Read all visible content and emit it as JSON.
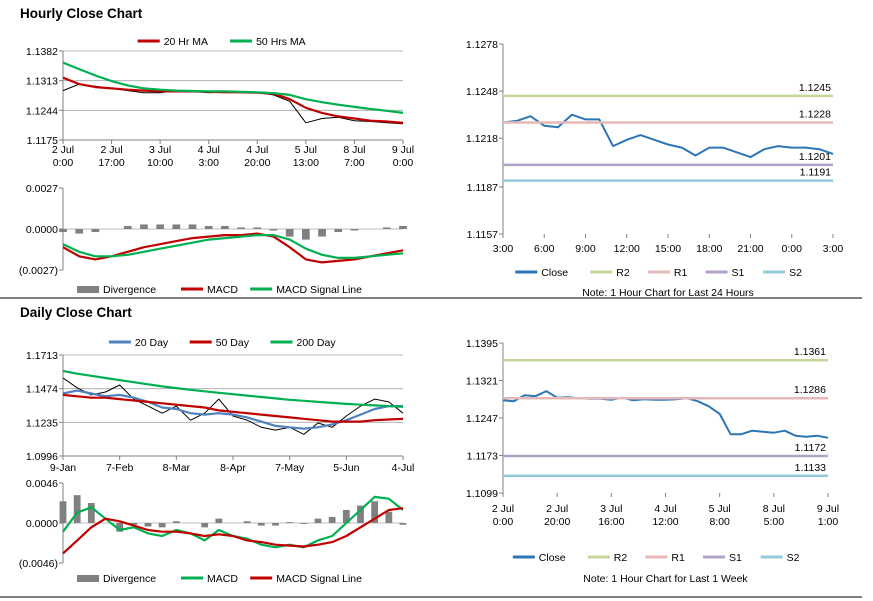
{
  "sections": [
    "Hourly Close Chart",
    "Daily Close Chart"
  ],
  "chart_data": [
    {
      "type": "price",
      "legend": "top",
      "grid": true,
      "ylim": [
        1.1175,
        1.1382
      ],
      "yticks": [
        1.1175,
        1.1244,
        1.1313,
        1.1382
      ],
      "categories": [
        [
          "2 Jul",
          "0:00"
        ],
        null,
        null,
        [
          "2 Jul",
          "17:00"
        ],
        null,
        null,
        [
          "3 Jul",
          "10:00"
        ],
        null,
        null,
        [
          "4 Jul",
          "3:00"
        ],
        null,
        null,
        [
          "4 Jul",
          "20:00"
        ],
        null,
        null,
        [
          "5 Jul",
          "13:00"
        ],
        null,
        null,
        [
          "8 Jul",
          "7:00"
        ],
        null,
        null,
        [
          "9 Jul",
          "0:00"
        ]
      ],
      "bars": {
        "color": "#000000",
        "values": [
          1.129,
          1.1305,
          1.13,
          1.1295,
          1.129,
          1.1285,
          1.1285,
          1.129,
          1.1288,
          1.1285,
          1.1286,
          1.1287,
          1.1285,
          1.128,
          1.1265,
          1.1215,
          1.1225,
          1.1228,
          1.122,
          1.1218,
          1.1215,
          1.1213
        ]
      },
      "series": [
        {
          "name": "20 Hr MA",
          "color": "#c00000",
          "values": [
            1.132,
            1.1305,
            1.1298,
            1.1295,
            1.1292,
            1.129,
            1.1288,
            1.1288,
            1.1288,
            1.1287,
            1.1286,
            1.1286,
            1.1285,
            1.1283,
            1.127,
            1.125,
            1.1238,
            1.123,
            1.1225,
            1.122,
            1.1218,
            1.1215
          ]
        },
        {
          "name": "50 Hrs MA",
          "color": "#00b050",
          "values": [
            1.1355,
            1.134,
            1.1325,
            1.1312,
            1.1302,
            1.1295,
            1.1292,
            1.129,
            1.1289,
            1.1288,
            1.1288,
            1.1287,
            1.1286,
            1.1284,
            1.128,
            1.127,
            1.1263,
            1.1257,
            1.1252,
            1.1247,
            1.1243,
            1.1238
          ]
        }
      ]
    },
    {
      "type": "macd",
      "legend": "bottom",
      "grid": false,
      "ylim": [
        -0.0027,
        0.0027
      ],
      "yticks": [
        {
          "value": -0.0027,
          "label": "(0.0027)"
        },
        {
          "value": 0,
          "label": "0.0000"
        },
        0.0027
      ],
      "series": [
        {
          "name": "Divergence",
          "color": "#808080",
          "style": "bar",
          "values": [
            -0.0002,
            -0.0003,
            -0.0002,
            0,
            0.0002,
            0.0003,
            0.0003,
            0.0003,
            0.0003,
            0.0002,
            0.0002,
            0.0001,
            0.0001,
            -0.0001,
            -0.0005,
            -0.0007,
            -0.0005,
            -0.0002,
            -0.0001,
            0,
            0.0001,
            0.0002
          ]
        },
        {
          "name": "MACD",
          "color": "#c00000",
          "values": [
            -0.0012,
            -0.0018,
            -0.002,
            -0.0018,
            -0.0015,
            -0.0012,
            -0.001,
            -0.0008,
            -0.0006,
            -0.0005,
            -0.0004,
            -0.0004,
            -0.0003,
            -0.0005,
            -0.0012,
            -0.002,
            -0.0022,
            -0.0021,
            -0.002,
            -0.0018,
            -0.0016,
            -0.0014
          ]
        },
        {
          "name": "MACD Signal Line",
          "color": "#00b050",
          "values": [
            -0.001,
            -0.0015,
            -0.0018,
            -0.0018,
            -0.0017,
            -0.0015,
            -0.0013,
            -0.0011,
            -0.0009,
            -0.0007,
            -0.0006,
            -0.0005,
            -0.0004,
            -0.0004,
            -0.0007,
            -0.0013,
            -0.0017,
            -0.0019,
            -0.0019,
            -0.0018,
            -0.0017,
            -0.0016
          ]
        }
      ]
    },
    {
      "type": "pivot",
      "legend": "bottom",
      "grid": false,
      "note": "Note: 1 Hour Chart for Last 24 Hours",
      "ylim": [
        1.1157,
        1.1278
      ],
      "yticks": [
        1.1157,
        1.1187,
        1.1218,
        1.1248,
        1.1278
      ],
      "categories": [
        "3:00",
        null,
        null,
        "6:00",
        null,
        null,
        "9:00",
        null,
        null,
        "12:00",
        null,
        null,
        "15:00",
        null,
        null,
        "18:00",
        null,
        null,
        "21:00",
        null,
        null,
        "0:00",
        null,
        null,
        "3:00"
      ],
      "series": [
        {
          "name": "Close",
          "color": "#2e75b6",
          "values": [
            1.1228,
            1.1229,
            1.1232,
            1.1226,
            1.1225,
            1.1233,
            1.123,
            1.123,
            1.1213,
            1.1217,
            1.122,
            1.1217,
            1.1214,
            1.1212,
            1.1207,
            1.1212,
            1.1212,
            1.1209,
            1.1206,
            1.1211,
            1.1213,
            1.1212,
            1.1212,
            1.1211,
            1.1208
          ]
        },
        {
          "name": "R2",
          "color": "#c4d79b",
          "value": 1.1245
        },
        {
          "name": "R1",
          "color": "#e6b9b8",
          "value": 1.1228
        },
        {
          "name": "S1",
          "color": "#b3a2c7",
          "value": 1.1201
        },
        {
          "name": "S2",
          "color": "#93cddd",
          "value": 1.1191
        }
      ]
    },
    {
      "type": "price",
      "legend": "top",
      "grid": true,
      "ylim": [
        1.0996,
        1.1713
      ],
      "yticks": [
        1.0996,
        1.1235,
        1.1474,
        1.1713
      ],
      "categories": [
        "9-Jan",
        null,
        null,
        null,
        "7-Feb",
        null,
        null,
        null,
        "8-Mar",
        null,
        null,
        null,
        "8-Apr",
        null,
        null,
        null,
        "7-May",
        null,
        null,
        null,
        "5-Jun",
        null,
        null,
        null,
        "4-Jul"
      ],
      "bars": {
        "color": "#000000",
        "values": [
          1.155,
          1.148,
          1.143,
          1.145,
          1.15,
          1.14,
          1.135,
          1.13,
          1.135,
          1.125,
          1.13,
          1.14,
          1.128,
          1.125,
          1.12,
          1.118,
          1.12,
          1.115,
          1.123,
          1.12,
          1.128,
          1.135,
          1.14,
          1.138,
          1.13
        ]
      },
      "series": [
        {
          "name": "20 Day",
          "color": "#4f81bd",
          "values": [
            1.144,
            1.146,
            1.144,
            1.142,
            1.143,
            1.141,
            1.138,
            1.134,
            1.133,
            1.13,
            1.129,
            1.13,
            1.129,
            1.127,
            1.124,
            1.121,
            1.12,
            1.119,
            1.12,
            1.122,
            1.125,
            1.129,
            1.133,
            1.135,
            1.135
          ]
        },
        {
          "name": "50 Day",
          "color": "#c00000",
          "values": [
            1.143,
            1.142,
            1.141,
            1.141,
            1.14,
            1.139,
            1.138,
            1.137,
            1.136,
            1.135,
            1.134,
            1.132,
            1.131,
            1.13,
            1.129,
            1.128,
            1.127,
            1.126,
            1.125,
            1.124,
            1.124,
            1.124,
            1.125,
            1.1255,
            1.126
          ]
        },
        {
          "name": "200 Day",
          "color": "#00b050",
          "values": [
            1.16,
            1.158,
            1.1565,
            1.155,
            1.1535,
            1.152,
            1.1505,
            1.149,
            1.1478,
            1.1466,
            1.1455,
            1.1445,
            1.1435,
            1.1425,
            1.1415,
            1.1405,
            1.1395,
            1.1388,
            1.138,
            1.1373,
            1.1366,
            1.136,
            1.1355,
            1.135,
            1.1345
          ]
        }
      ]
    },
    {
      "type": "macd",
      "legend": "bottom",
      "grid": false,
      "ylim": [
        -0.0046,
        0.0046
      ],
      "yticks": [
        {
          "value": -0.0046,
          "label": "(0.0046)"
        },
        {
          "value": 0,
          "label": "0.0000"
        },
        0.0046
      ],
      "series": [
        {
          "name": "Divergence",
          "color": "#808080",
          "style": "bar",
          "values": [
            0.0025,
            0.0032,
            0.0023,
            0,
            -0.001,
            -0.0002,
            -0.0004,
            -0.0005,
            0.0002,
            0,
            -0.0005,
            0.0005,
            0,
            0.0002,
            -0.0003,
            -0.0003,
            0.0001,
            -0.0001,
            0.0005,
            0.0007,
            0.0015,
            0.002,
            0.0025,
            0.0013,
            -0.0002
          ]
        },
        {
          "name": "MACD",
          "color": "#00b050",
          "values": [
            -0.001,
            0.0012,
            0.0018,
            0.0005,
            -0.0008,
            -0.0005,
            -0.0012,
            -0.0015,
            -0.0008,
            -0.0012,
            -0.002,
            -0.0008,
            -0.0015,
            -0.0018,
            -0.0025,
            -0.0028,
            -0.0025,
            -0.0028,
            -0.002,
            -0.0015,
            0,
            0.0015,
            0.003,
            0.0028,
            0.0015
          ]
        },
        {
          "name": "MACD Signal Line",
          "color": "#c00000",
          "values": [
            -0.0035,
            -0.002,
            -0.0005,
            0.0005,
            0.0002,
            -0.0003,
            -0.0008,
            -0.001,
            -0.001,
            -0.0012,
            -0.0015,
            -0.0013,
            -0.0015,
            -0.002,
            -0.0022,
            -0.0025,
            -0.0026,
            -0.0027,
            -0.0025,
            -0.0022,
            -0.0015,
            -0.0005,
            0.0005,
            0.0015,
            0.0017
          ]
        }
      ]
    },
    {
      "type": "pivot",
      "legend": "bottom",
      "grid": false,
      "note": "Note: 1 Hour Chart for Last 1 Week",
      "ylim": [
        1.1099,
        1.1395
      ],
      "yticks": [
        1.1099,
        1.1173,
        1.1247,
        1.1321,
        1.1395
      ],
      "categories": [
        [
          "2 Jul",
          "0:00"
        ],
        null,
        null,
        null,
        null,
        [
          "2 Jul",
          "20:00"
        ],
        null,
        null,
        null,
        null,
        [
          "3 Jul",
          "16:00"
        ],
        null,
        null,
        null,
        null,
        [
          "4 Jul",
          "12:00"
        ],
        null,
        null,
        null,
        null,
        [
          "5 Jul",
          "8:00"
        ],
        null,
        null,
        null,
        null,
        [
          "8 Jul",
          "5:00"
        ],
        null,
        null,
        null,
        null,
        [
          "9 Jul",
          "1:00"
        ]
      ],
      "series": [
        {
          "name": "Close",
          "color": "#2e75b6",
          "values": [
            1.1282,
            1.128,
            1.1292,
            1.129,
            1.13,
            1.1287,
            1.1288,
            1.1286,
            1.1285,
            1.1285,
            1.1283,
            1.1287,
            1.1282,
            1.1284,
            1.1283,
            1.1283,
            1.1284,
            1.1286,
            1.128,
            1.127,
            1.1255,
            1.1215,
            1.1215,
            1.1222,
            1.122,
            1.1218,
            1.1222,
            1.1212,
            1.121,
            1.1212,
            1.1208
          ]
        },
        {
          "name": "R2",
          "color": "#c4d79b",
          "value": 1.1361
        },
        {
          "name": "R1",
          "color": "#e6b9b8",
          "value": 1.1286
        },
        {
          "name": "S1",
          "color": "#b3a2c7",
          "value": 1.1172
        },
        {
          "name": "S2",
          "color": "#93cddd",
          "value": 1.1133
        }
      ]
    }
  ]
}
